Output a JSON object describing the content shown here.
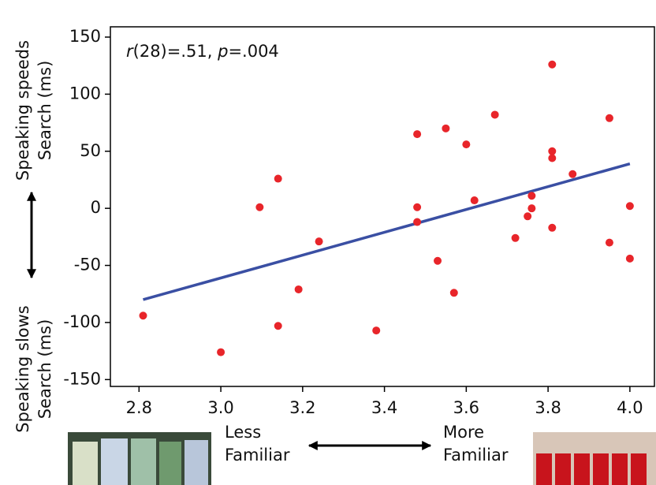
{
  "chart_data": {
    "type": "scatter",
    "annotation": [
      "r",
      "(28)=.51, ",
      "p",
      "=.004"
    ],
    "y_label_top": [
      "Speaking speeds",
      "Search (ms)"
    ],
    "y_label_bottom": [
      "Speaking slows",
      "Search (ms)"
    ],
    "x_label_left": [
      "Less",
      "Familiar"
    ],
    "x_label_right": [
      "More",
      "Familiar"
    ],
    "color": "#e8252a",
    "x": [
      2.81,
      3.0,
      3.095,
      3.14,
      3.14,
      3.19,
      3.24,
      3.38,
      3.48,
      3.48,
      3.48,
      3.53,
      3.55,
      3.57,
      3.6,
      3.62,
      3.67,
      3.72,
      3.75,
      3.76,
      3.76,
      3.81,
      3.81,
      3.81,
      3.81,
      3.86,
      3.95,
      3.95,
      4.0,
      4.0
    ],
    "y": [
      -94,
      -126,
      1,
      26,
      -103,
      -71,
      -29,
      -107,
      65,
      1,
      -12,
      -46,
      70,
      -74,
      56,
      7,
      82,
      -26,
      -7,
      11,
      0,
      126,
      50,
      44,
      -17,
      30,
      79,
      -30,
      2,
      -44
    ],
    "trendline": {
      "color": "#3a4fa3",
      "x": [
        2.81,
        4.0
      ],
      "y": [
        -80,
        39
      ]
    },
    "xlim": [
      2.73,
      4.06
    ],
    "ylim": [
      -156,
      159
    ],
    "xticks": [
      2.8,
      {
        "value": 3.0,
        "label": "3.0"
      },
      3.2,
      3.4,
      3.6,
      3.8,
      {
        "value": 4.0,
        "label": "4.0"
      }
    ],
    "yticks": [
      -150,
      -100,
      -50,
      0,
      50,
      100,
      150
    ]
  }
}
